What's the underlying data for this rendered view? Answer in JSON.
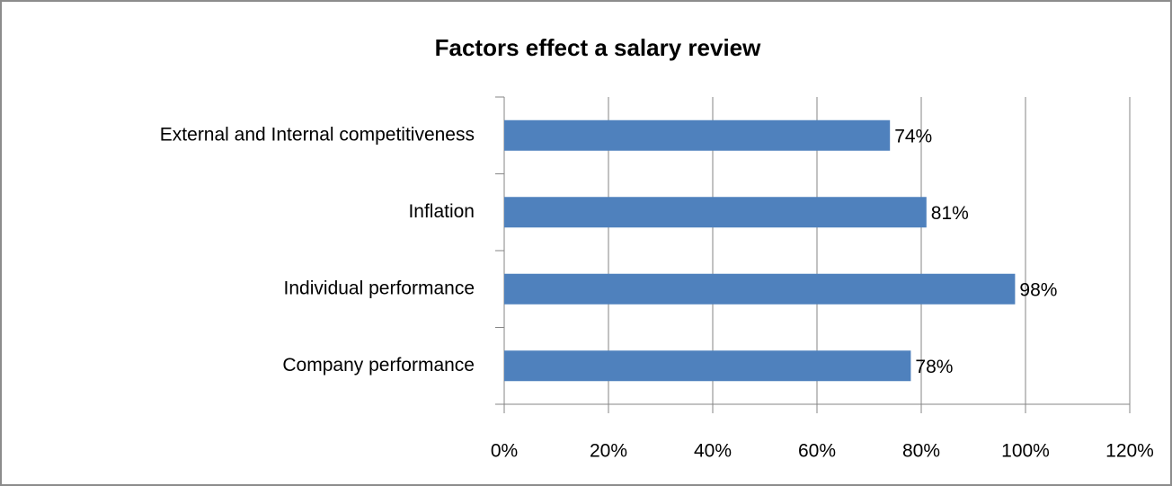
{
  "chart_data": {
    "type": "bar",
    "orientation": "horizontal",
    "title": "Factors effect a salary review",
    "categories": [
      "External and Internal competitiveness",
      "Inflation",
      "Individual performance",
      "Company performance"
    ],
    "values": [
      74,
      81,
      98,
      78
    ],
    "value_labels": [
      "74%",
      "81%",
      "98%",
      "78%"
    ],
    "color": "#4f81bd",
    "xlim": [
      0,
      120
    ],
    "xticks": [
      {
        "value": 0,
        "label": "0%"
      },
      {
        "value": 20,
        "label": "20%"
      },
      {
        "value": 40,
        "label": "40%"
      },
      {
        "value": 60,
        "label": "60%"
      },
      {
        "value": 80,
        "label": "80%"
      },
      {
        "value": 100,
        "label": "100%"
      },
      {
        "value": 120,
        "label": "120%"
      }
    ],
    "grid": true
  }
}
